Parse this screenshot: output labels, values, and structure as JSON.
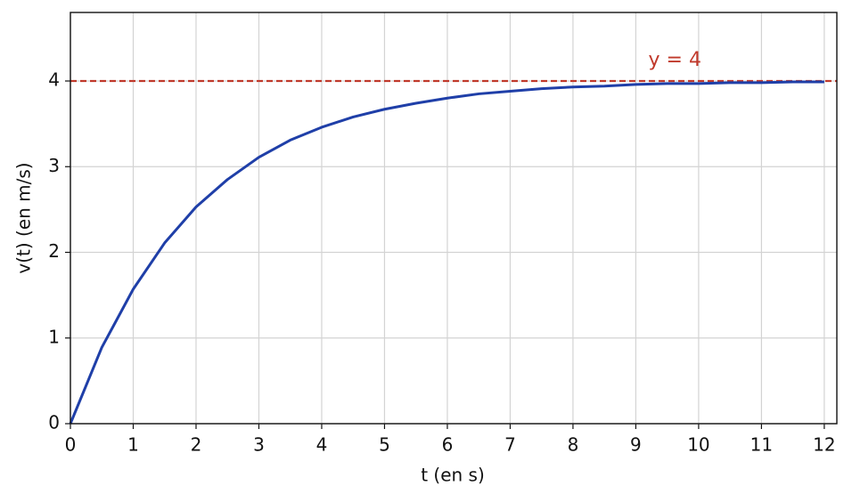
{
  "chart_data": {
    "type": "line",
    "xlabel": "t (en s)",
    "ylabel": "v(t) (en m/s)",
    "x": [
      0,
      0.5,
      1,
      1.5,
      2,
      2.5,
      3,
      3.5,
      4,
      4.5,
      5,
      5.5,
      6,
      6.5,
      7,
      7.5,
      8,
      8.5,
      9,
      9.5,
      10,
      10.5,
      11,
      11.5,
      12
    ],
    "series": [
      {
        "color": "#1f3fa8",
        "values": [
          0,
          0.89,
          1.57,
          2.11,
          2.53,
          2.85,
          3.11,
          3.31,
          3.46,
          3.58,
          3.67,
          3.74,
          3.8,
          3.85,
          3.88,
          3.91,
          3.93,
          3.94,
          3.96,
          3.97,
          3.97,
          3.98,
          3.98,
          3.99,
          3.99
        ]
      }
    ],
    "hlines": [
      {
        "value": 4,
        "label": "y = 4",
        "color": "#c0392b",
        "dashed": true
      }
    ],
    "xlim": [
      0,
      12.2
    ],
    "ylim": [
      0,
      4.8
    ],
    "xticks": [
      0,
      1,
      2,
      3,
      4,
      5,
      6,
      7,
      8,
      9,
      10,
      11,
      12
    ],
    "yticks": [
      0,
      1,
      2,
      3,
      4
    ],
    "grid": true
  }
}
